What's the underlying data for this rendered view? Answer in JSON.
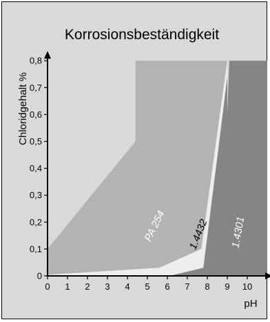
{
  "chart_data": {
    "type": "area",
    "title": "Korrosionsbeständigkeit",
    "xlabel": "pH",
    "ylabel": "Chloridgehalt %",
    "xlim": [
      0,
      11
    ],
    "ylim": [
      0,
      0.8
    ],
    "x_ticks": [
      "0",
      "1",
      "2",
      "3",
      "4",
      "5",
      "6",
      "7",
      "8",
      "9",
      "10"
    ],
    "y_ticks": [
      "0",
      "0,1",
      "0,2",
      "0,3",
      "0,4",
      "0,5",
      "0,6",
      "0,7",
      "0,8"
    ],
    "grid": false,
    "regions": [
      {
        "name": "PA 254",
        "color": "#b3b3b3",
        "label_color": "#ffffff",
        "label_pos": [
          5.5,
          0.18
        ],
        "label_rotation": -64,
        "points": [
          [
            0,
            0.1
          ],
          [
            0,
            0.004
          ],
          [
            5.6,
            0.03
          ],
          [
            7.7,
            0.1
          ],
          [
            9.0,
            0.8
          ],
          [
            4.4,
            0.8
          ],
          [
            4.4,
            0.5
          ]
        ]
      },
      {
        "name": "1.4432",
        "color": "#ededed",
        "label_color": "#000000",
        "label_pos": [
          7.7,
          0.15
        ],
        "label_rotation": -68,
        "points": [
          [
            0,
            0.004
          ],
          [
            5.6,
            0.03
          ],
          [
            7.7,
            0.1
          ],
          [
            9.0,
            0.8
          ],
          [
            9.0,
            0.74
          ],
          [
            8.6,
            0.5
          ],
          [
            7.8,
            0.03
          ],
          [
            6.1,
            0.0
          ],
          [
            0,
            0.0
          ]
        ]
      },
      {
        "name": "1.4301",
        "color": "#858585",
        "label_color": "#ffffff",
        "label_pos": [
          9.7,
          0.16
        ],
        "label_rotation": -80,
        "points": [
          [
            6.1,
            0.0
          ],
          [
            7.8,
            0.03
          ],
          [
            8.6,
            0.5
          ],
          [
            9.0,
            0.74
          ],
          [
            9.0,
            0.6
          ],
          [
            9.1,
            0.8
          ],
          [
            11.0,
            0.8
          ],
          [
            11.0,
            0.0
          ]
        ]
      }
    ]
  }
}
